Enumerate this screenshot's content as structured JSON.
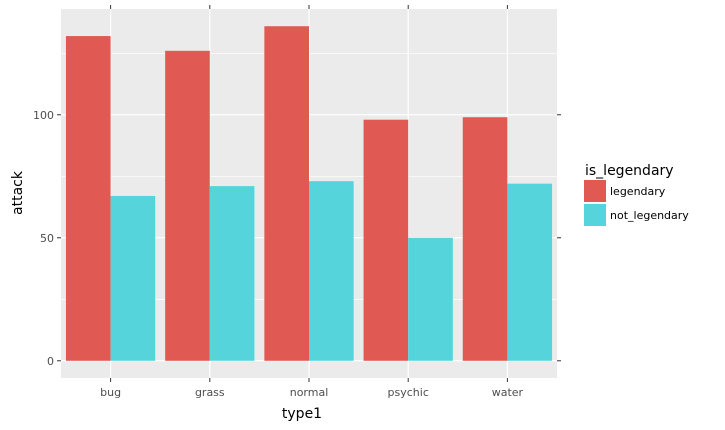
{
  "chart_data": {
    "type": "bar",
    "title": "",
    "xlabel": "type1",
    "ylabel": "attack",
    "categories": [
      "bug",
      "grass",
      "normal",
      "psychic",
      "water"
    ],
    "series": [
      {
        "name": "legendary",
        "color": "#e05a53",
        "values": [
          132,
          126,
          136,
          98,
          99
        ]
      },
      {
        "name": "not_legendary",
        "color": "#55d4dc",
        "values": [
          67,
          71,
          73,
          50,
          72
        ]
      }
    ],
    "ylim": [
      -7,
      143
    ],
    "yticks": [
      0,
      50,
      100
    ],
    "y_tick_labels": [
      "0",
      "50",
      "100"
    ],
    "grid": true,
    "legend": {
      "title": "is_legendary",
      "position": "right",
      "entries": [
        "legendary",
        "not_legendary"
      ]
    }
  }
}
